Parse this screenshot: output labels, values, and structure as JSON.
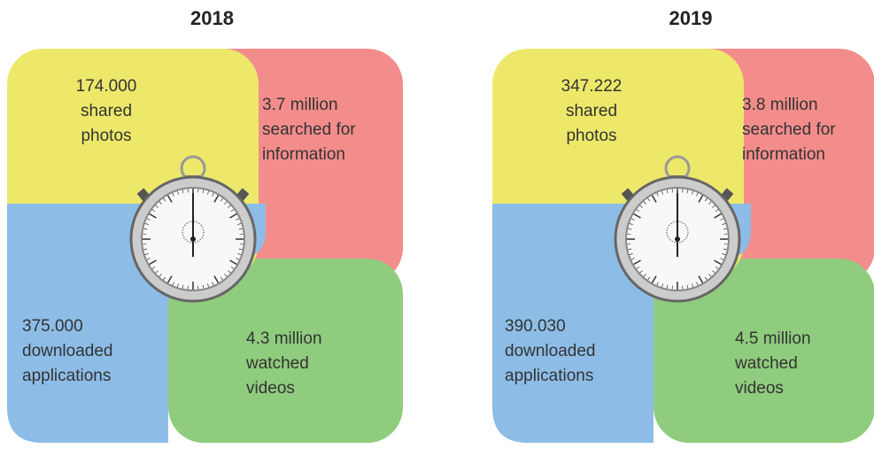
{
  "panels": [
    {
      "year": "2018",
      "quadrants": [
        [
          "174.000",
          "shared",
          "photos"
        ],
        [
          "3.7 million",
          "searched for",
          "information"
        ],
        [
          "375.000",
          "downloaded",
          "applications"
        ],
        [
          "4.3 million",
          "watched",
          "videos"
        ]
      ]
    },
    {
      "year": "2019",
      "quadrants": [
        [
          "347.222",
          "shared",
          "photos"
        ],
        [
          "3.8 million",
          "searched for",
          "information"
        ],
        [
          "390.030",
          "downloaded",
          "applications"
        ],
        [
          "4.5 million",
          "watched",
          "videos"
        ]
      ]
    }
  ]
}
